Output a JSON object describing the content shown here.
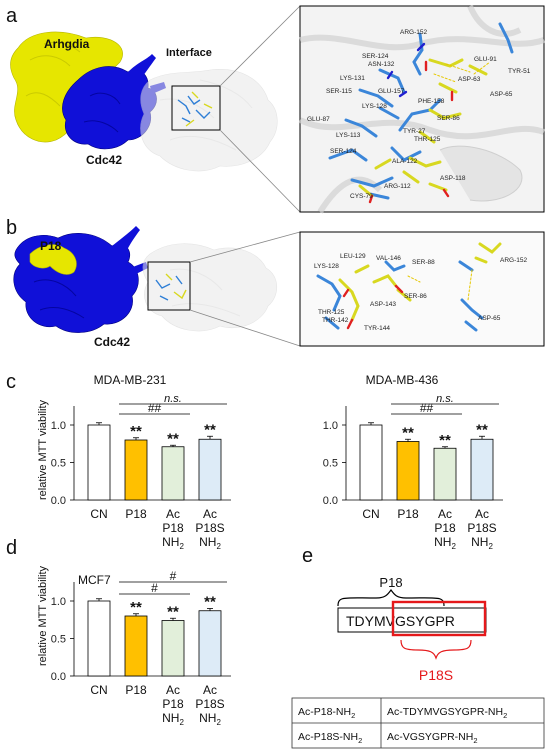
{
  "panels": {
    "a": {
      "letter": "a",
      "protein1": "Arhgdia",
      "protein2": "Cdc42",
      "interface_label": "Interface",
      "residues": [
        "ARG-152",
        "SER-124",
        "ASN-132",
        "GLU-91",
        "TYR-51",
        "LYS-131",
        "SER-115",
        "GLU-157",
        "ASP-63",
        "ASP-65",
        "LYS-128",
        "PHE-158",
        "SER-86",
        "GLU-87",
        "LYS-113",
        "TYR-27",
        "THR-125",
        "SER-124",
        "ALA-122",
        "ARG-112",
        "ASP-118",
        "CYS-79"
      ]
    },
    "b": {
      "letter": "b",
      "protein1": "P18",
      "protein2": "Cdc42",
      "residues": [
        "LEU-129",
        "LYS-128",
        "VAL-146",
        "SER-88",
        "ARG-152",
        "SER-86",
        "ASP-143",
        "THR-125",
        "THR-142",
        "TYR-144",
        "ASP-65"
      ]
    },
    "c": {
      "letter": "c"
    },
    "d": {
      "letter": "d"
    },
    "e": {
      "letter": "e",
      "p18_label": "P18",
      "sequence_part1": "TDYM",
      "sequence_part2": "VGSYGPR",
      "p18s_label": "P18S",
      "table": [
        [
          "Ac-P18-NH2",
          "Ac-TDYMVGSYGPR-NH2"
        ],
        [
          "Ac-P18S-NH2",
          "Ac-VGSYGPR-NH2"
        ]
      ]
    }
  },
  "chart_data": [
    {
      "type": "bar",
      "title": "MDA-MB-231",
      "ylabel": "relative MTT viability",
      "ylim": [
        0,
        1.0
      ],
      "yticks": [
        "0.0",
        "0.5",
        "1.0"
      ],
      "categories": [
        "CN",
        "P18",
        "Ac P18 NH2",
        "Ac P18S NH2"
      ],
      "category_lines": [
        [
          "CN"
        ],
        [
          "P18"
        ],
        [
          "Ac",
          "P18",
          "NH2"
        ],
        [
          "Ac",
          "P18S",
          "NH2"
        ]
      ],
      "values": [
        1.0,
        0.8,
        0.71,
        0.81
      ],
      "errors": [
        0.03,
        0.03,
        0.02,
        0.04
      ],
      "colors": [
        "#ffffff",
        "#ffc000",
        "#e2efda",
        "#ddebf7"
      ],
      "significance": [
        "",
        "**",
        "**",
        "**"
      ],
      "brackets": [
        {
          "from": 1,
          "to": 3,
          "label": "n.s."
        },
        {
          "from": 1,
          "to": 2,
          "label": "##"
        }
      ]
    },
    {
      "type": "bar",
      "title": "MDA-MB-436",
      "ylabel": "",
      "ylim": [
        0,
        1.0
      ],
      "yticks": [
        "0.0",
        "0.5",
        "1.0"
      ],
      "categories": [
        "CN",
        "P18",
        "Ac P18 NH2",
        "Ac P18S NH2"
      ],
      "category_lines": [
        [
          "CN"
        ],
        [
          "P18"
        ],
        [
          "Ac",
          "P18",
          "NH2"
        ],
        [
          "Ac",
          "P18S",
          "NH2"
        ]
      ],
      "values": [
        1.0,
        0.78,
        0.69,
        0.81
      ],
      "errors": [
        0.03,
        0.03,
        0.02,
        0.04
      ],
      "colors": [
        "#ffffff",
        "#ffc000",
        "#e2efda",
        "#ddebf7"
      ],
      "significance": [
        "",
        "**",
        "**",
        "**"
      ],
      "brackets": [
        {
          "from": 1,
          "to": 3,
          "label": "n.s."
        },
        {
          "from": 1,
          "to": 2,
          "label": "##"
        }
      ]
    },
    {
      "type": "bar",
      "title": "MCF7",
      "ylabel": "relative MTT viability",
      "ylim": [
        0,
        1.0
      ],
      "yticks": [
        "0.0",
        "0.5",
        "1.0"
      ],
      "categories": [
        "CN",
        "P18",
        "Ac P18 NH2",
        "Ac P18S NH2"
      ],
      "category_lines": [
        [
          "CN"
        ],
        [
          "P18"
        ],
        [
          "Ac",
          "P18",
          "NH2"
        ],
        [
          "Ac",
          "P18S",
          "NH2"
        ]
      ],
      "values": [
        1.0,
        0.8,
        0.74,
        0.87
      ],
      "errors": [
        0.03,
        0.03,
        0.03,
        0.03
      ],
      "colors": [
        "#ffffff",
        "#ffc000",
        "#e2efda",
        "#ddebf7"
      ],
      "significance": [
        "",
        "**",
        "**",
        "**"
      ],
      "brackets": [
        {
          "from": 1,
          "to": 3,
          "label": "#"
        },
        {
          "from": 1,
          "to": 2,
          "label": "#"
        }
      ]
    }
  ]
}
